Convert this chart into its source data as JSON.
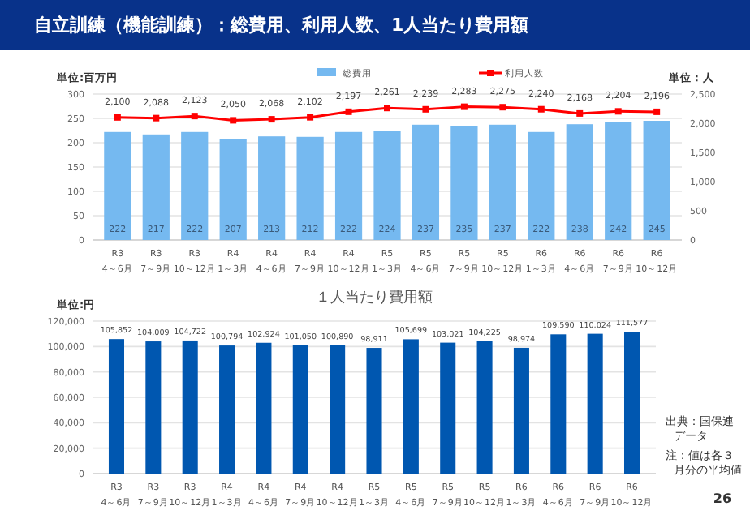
{
  "chart_data": [
    {
      "type": "bar",
      "title": "自立訓練（機能訓練）：総費用、利用人数、1人当たり費用額",
      "ylabel": "単位:百万円",
      "y2label": "単位：人",
      "categories": [
        "R3\n4～6月",
        "R3\n7～9月",
        "R3\n10～12月",
        "R4\n1～3月",
        "R4\n4～6月",
        "R4\n7～9月",
        "R4\n10～12月",
        "R5\n1～3月",
        "R5\n4～6月",
        "R5\n7～9月",
        "R5\n10～12月",
        "R6\n1～3月",
        "R6\n4～6月",
        "R6\n7～9月",
        "R6\n10～12月"
      ],
      "series": [
        {
          "name": "総費用",
          "type": "bar",
          "color": "#75b9f0",
          "values": [
            222,
            217,
            222,
            207,
            213,
            212,
            222,
            224,
            237,
            235,
            237,
            222,
            238,
            242,
            245
          ],
          "value_labels": [
            "222",
            "217",
            "222",
            "207",
            "213",
            "212",
            "222",
            "224",
            "237",
            "235",
            "237",
            "222",
            "238",
            "242",
            "245"
          ]
        },
        {
          "name": "利用人数",
          "type": "line",
          "axis": "y2",
          "color": "#ff0000",
          "marker": "square",
          "values": [
            2100,
            2088,
            2123,
            2050,
            2068,
            2102,
            2197,
            2261,
            2239,
            2283,
            2275,
            2240,
            2168,
            2204,
            2196
          ],
          "value_labels": [
            "2,100",
            "2,088",
            "2,123",
            "2,050",
            "2,068",
            "2,102",
            "2,197",
            "2,261",
            "2,239",
            "2,283",
            "2,275",
            "2,240",
            "2,168",
            "2,204",
            "2,196"
          ]
        }
      ],
      "ylim": [
        0,
        300
      ],
      "yticks": [
        0,
        50,
        100,
        150,
        200,
        250,
        300
      ],
      "y2lim": [
        0,
        2500
      ],
      "y2ticks": [
        0,
        {
          "value": 500,
          "label": "500"
        },
        {
          "value": 1000,
          "label": "1,000"
        },
        {
          "value": 1500,
          "label": "1,500"
        },
        {
          "value": 2000,
          "label": "2,000"
        },
        {
          "value": 2500,
          "label": "2,500"
        }
      ],
      "grid": "y",
      "legend": "top"
    },
    {
      "type": "bar",
      "title": "１人当たり費用額",
      "ylabel": "単位:円",
      "categories": [
        "R3\n4～6月",
        "R3\n7～9月",
        "R3\n10～12月",
        "R4\n1～3月",
        "R4\n4～6月",
        "R4\n7～9月",
        "R4\n10～12月",
        "R5\n1～3月",
        "R5\n4～6月",
        "R5\n7～9月",
        "R5\n10～12月",
        "R6\n1～3月",
        "R6\n4～6月",
        "R6\n7～9月",
        "R6\n10～12月"
      ],
      "values": [
        105852,
        104009,
        104722,
        100794,
        102924,
        101050,
        100890,
        98911,
        105699,
        103021,
        104225,
        98974,
        109590,
        110024,
        111577
      ],
      "color": "#0057b0",
      "value_labels": [
        "105,852",
        "104,009",
        "104,722",
        "100,794",
        "102,924",
        "101,050",
        "100,890",
        "98,911",
        "105,699",
        "103,021",
        "104,225",
        "98,974",
        "109,590",
        "110,024",
        "111,577"
      ],
      "ylim": [
        0,
        120000
      ],
      "yticks": [
        0,
        {
          "value": 20000,
          "label": "20,000"
        },
        {
          "value": 40000,
          "label": "40,000"
        },
        {
          "value": 60000,
          "label": "60,000"
        },
        {
          "value": 80000,
          "label": "80,000"
        },
        {
          "value": 100000,
          "label": "100,000"
        },
        {
          "value": 120000,
          "label": "120,000"
        }
      ],
      "grid": "y",
      "annotations": [
        "出典：国保連データ",
        "注：値は各３月分の平均値",
        "26"
      ]
    }
  ]
}
